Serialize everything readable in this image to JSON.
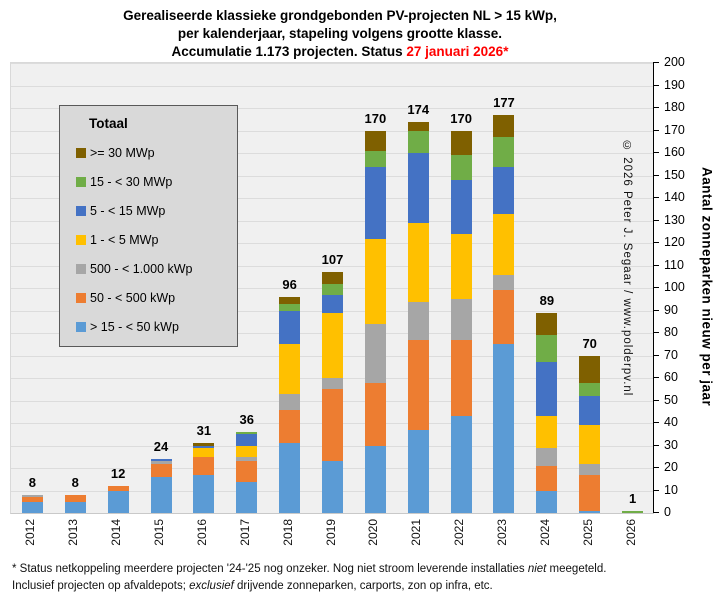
{
  "title": {
    "line1": "Gerealiseerde klassieke grondgebonden PV-projecten NL > 15 kWp,",
    "line2": "per kalenderjaar, stapeling volgens grootte klasse.",
    "line3_prefix": "Accumulatie 1.173 projecten. Status ",
    "line3_status": "27 januari 2026*",
    "status_color": "#FF0000"
  },
  "legend": {
    "title": "Totaal",
    "items": [
      {
        "label": ">= 30 MWp",
        "color": "#7F6000"
      },
      {
        "label": "15 - < 30 MWp",
        "color": "#70AD47"
      },
      {
        "label": "5 - < 15 MWp",
        "color": "#4472C4"
      },
      {
        "label": "1 - < 5 MWp",
        "color": "#FFC000"
      },
      {
        "label": "500 - < 1.000 kWp",
        "color": "#A6A6A6"
      },
      {
        "label": "50 - < 500 kWp",
        "color": "#ED7D31"
      },
      {
        "label": "> 15 - < 50 kWp",
        "color": "#5B9BD5"
      }
    ]
  },
  "watermark": "© 2026 Peter J. Segaar / www.polderpv.nl",
  "y_axis_title": "Aantal zonneparken nieuw per jaar",
  "footnote": {
    "line1_a": "* Status netkoppeling meerdere projecten '24-'25 nog onzeker. Nog niet stroom leverende installaties ",
    "line1_italic": "niet",
    "line1_b": " meegeteld.",
    "line2_a": "Inclusief projecten op afvaldepots; ",
    "line2_italic": "exclusief",
    "line2_b": " drijvende zonneparken, carports, zon op infra, etc."
  },
  "chart_data": {
    "type": "bar",
    "stacked": true,
    "title": "Gerealiseerde klassieke grondgebonden PV-projecten NL > 15 kWp, per kalenderjaar, stapeling volgens grootte klasse. Accumulatie 1.173 projecten. Status 27 januari 2026*",
    "xlabel": "",
    "ylabel": "Aantal zonneparken nieuw per jaar",
    "ylim": [
      0,
      200
    ],
    "grid_step": 10,
    "grid": true,
    "legend_position": "top-left",
    "categories": [
      "2012",
      "2013",
      "2014",
      "2015",
      "2016",
      "2017",
      "2018",
      "2019",
      "2020",
      "2021",
      "2022",
      "2023",
      "2024",
      "2025",
      "2026"
    ],
    "totals": [
      8,
      8,
      12,
      24,
      31,
      36,
      96,
      107,
      170,
      174,
      170,
      177,
      89,
      70,
      1
    ],
    "series": [
      {
        "name": "> 15 - < 50 kWp",
        "color": "#5B9BD5",
        "values": [
          5,
          5,
          10,
          16,
          17,
          14,
          31,
          23,
          30,
          37,
          43,
          75,
          10,
          1,
          0
        ]
      },
      {
        "name": "50 - < 500 kWp",
        "color": "#ED7D31",
        "values": [
          2,
          3,
          2,
          6,
          8,
          9,
          15,
          32,
          28,
          40,
          34,
          24,
          11,
          16,
          0
        ]
      },
      {
        "name": "500 - < 1.000 kWp",
        "color": "#A6A6A6",
        "values": [
          1,
          0,
          0,
          1,
          0,
          2,
          7,
          5,
          26,
          17,
          18,
          7,
          8,
          5,
          0
        ]
      },
      {
        "name": "1 - < 5 MWp",
        "color": "#FFC000",
        "values": [
          0,
          0,
          0,
          0,
          4,
          5,
          22,
          29,
          38,
          35,
          29,
          27,
          14,
          17,
          0
        ]
      },
      {
        "name": "5 - < 15 MWp",
        "color": "#4472C4",
        "values": [
          0,
          0,
          0,
          1,
          1,
          5,
          15,
          8,
          32,
          31,
          24,
          21,
          24,
          13,
          0
        ]
      },
      {
        "name": "15 - < 30 MWp",
        "color": "#70AD47",
        "values": [
          0,
          0,
          0,
          0,
          0,
          1,
          3,
          5,
          7,
          10,
          11,
          13,
          12,
          6,
          1
        ]
      },
      {
        "name": ">= 30 MWp",
        "color": "#7F6000",
        "values": [
          0,
          0,
          0,
          0,
          1,
          0,
          3,
          5,
          9,
          4,
          11,
          10,
          10,
          12,
          0
        ]
      }
    ]
  }
}
